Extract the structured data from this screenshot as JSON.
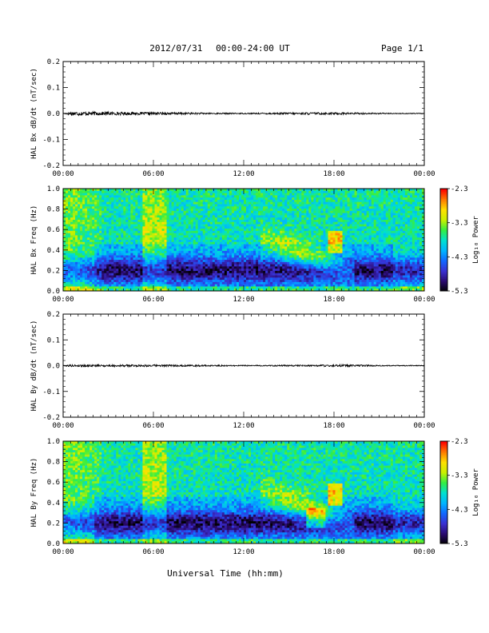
{
  "header": {
    "date": "2012/07/31",
    "time_range": "00:00-24:00 UT",
    "page": "Page 1/1"
  },
  "footer": {
    "xlabel": "Universal Time (hh:mm)"
  },
  "colors": {
    "spectrogram_background": "#1f8fe8",
    "colormap": [
      "#000000",
      "#2a0a6e",
      "#3a2fd0",
      "#1266ff",
      "#00b4ff",
      "#00e0d0",
      "#33ee44",
      "#c8f000",
      "#ffe000",
      "#ff7a00",
      "#ff0000"
    ]
  },
  "chart_data": [
    {
      "type": "line",
      "ylabel": "HAL Bx dB/dt (nT/sec)",
      "xlim": [
        0,
        24
      ],
      "ylim": [
        -0.2,
        0.2
      ],
      "xticks": [
        "00:00",
        "06:00",
        "12:00",
        "18:00",
        "00:00"
      ],
      "yticks": [
        "0.2",
        "0.1",
        "0.0",
        "-0.1",
        "-0.2"
      ],
      "series": [
        {
          "x": [
            0,
            0.5,
            5.2,
            12,
            15.8,
            18.4,
            24
          ],
          "values": [
            0,
            0.008,
            0.005,
            0.002,
            0.004,
            0.004,
            0
          ]
        }
      ]
    },
    {
      "type": "heatmap",
      "ylabel": "HAL Bx Freq (Hz)",
      "xlim": [
        0,
        24
      ],
      "ylim": [
        0,
        1
      ],
      "xticks": [
        "00:00",
        "06:00",
        "12:00",
        "18:00",
        "00:00"
      ],
      "yticks": [
        "1.0",
        "0.8",
        "0.6",
        "0.4",
        "0.2",
        "0.0"
      ],
      "colorbar": {
        "label": "Log₁₀ Power",
        "range": [
          -5.3,
          -2.3
        ],
        "ticks": [
          "-2.3",
          "-3.3",
          "-4.3",
          "-5.3"
        ]
      }
    },
    {
      "type": "line",
      "ylabel": "HAL By dB/dt (nT/sec)",
      "xlim": [
        0,
        24
      ],
      "ylim": [
        -0.2,
        0.2
      ],
      "xticks": [
        "00:00",
        "06:00",
        "12:00",
        "18:00",
        "00:00"
      ],
      "yticks": [
        "0.2",
        "0.1",
        "0.0",
        "-0.1",
        "-0.2"
      ],
      "series": [
        {
          "x": [
            0,
            0.4,
            5.5,
            12,
            16.5,
            18.5,
            24
          ],
          "values": [
            0,
            0.004,
            0.004,
            0.002,
            0.003,
            0.004,
            0
          ]
        }
      ]
    },
    {
      "type": "heatmap",
      "ylabel": "HAL By Freq (Hz)",
      "xlim": [
        0,
        24
      ],
      "ylim": [
        0,
        1
      ],
      "xticks": [
        "00:00",
        "06:00",
        "12:00",
        "18:00",
        "00:00"
      ],
      "yticks": [
        "1.0",
        "0.8",
        "0.6",
        "0.4",
        "0.2",
        "0.0"
      ],
      "colorbar": {
        "label": "Log₁₀ Power",
        "range": [
          -5.3,
          -2.3
        ],
        "ticks": [
          "-2.3",
          "-3.3",
          "-4.3",
          "-5.3"
        ]
      }
    }
  ]
}
